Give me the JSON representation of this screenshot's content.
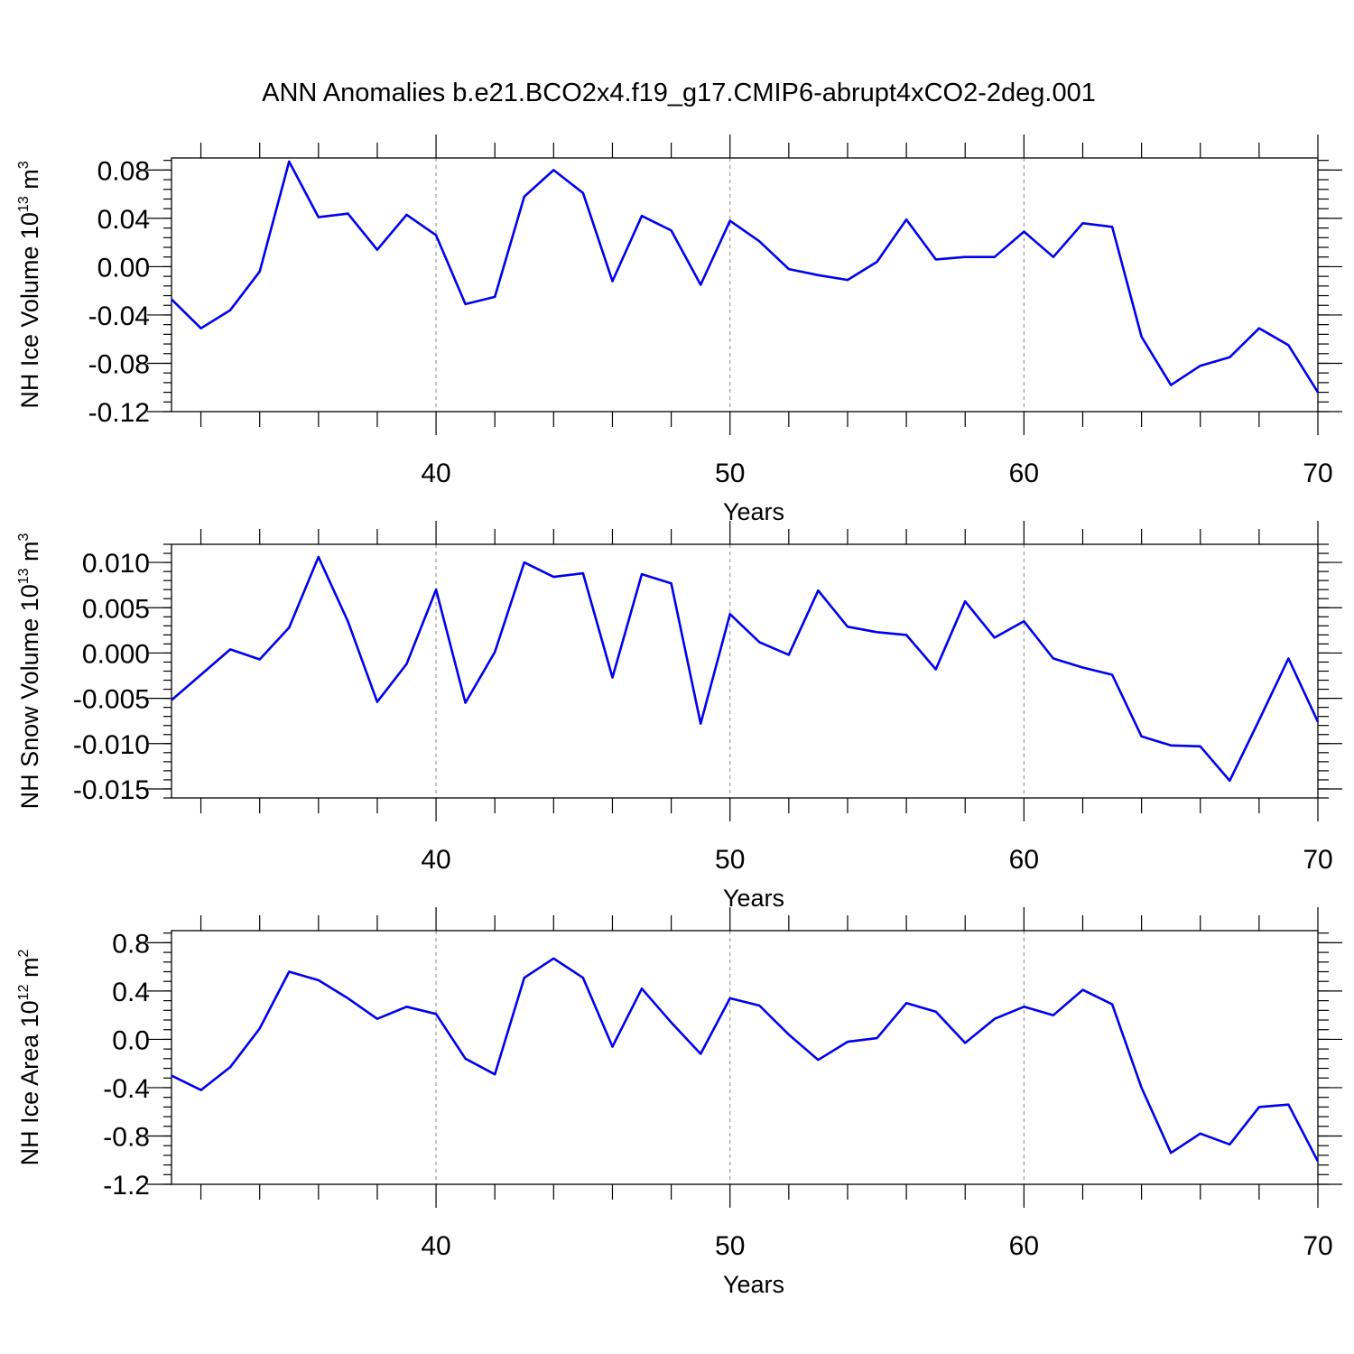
{
  "title": "ANN Anomalies b.e21.BCO2x4.f19_g17.CMIP6-abrupt4xCO2-2deg.001",
  "colors": {
    "line": "#0000ee",
    "grid": "#888888",
    "axis": "#000000"
  },
  "chart_data": [
    {
      "type": "line",
      "ylabel": {
        "text": "NH Ice Volume 10",
        "sup1": "13",
        "mid": " m",
        "sup2": "3"
      },
      "xlabel": "Years",
      "xlim": [
        31,
        70
      ],
      "ylim": [
        -0.12,
        0.09
      ],
      "yticks": [
        0.08,
        0.04,
        0.0,
        -0.04,
        -0.08,
        -0.12
      ],
      "ytick_labels": [
        "0.08",
        "0.04",
        "0.00",
        "-0.04",
        "-0.08",
        "-0.12"
      ],
      "yminor_step": 0.008,
      "xticks": [
        40,
        50,
        60,
        70
      ],
      "xtick_labels": [
        "40",
        "50",
        "60",
        "70"
      ],
      "xgrid": [
        40,
        50,
        60
      ],
      "x": [
        31,
        32,
        33,
        34,
        35,
        36,
        37,
        38,
        39,
        40,
        41,
        42,
        43,
        44,
        45,
        46,
        47,
        48,
        49,
        50,
        51,
        52,
        53,
        54,
        55,
        56,
        57,
        58,
        59,
        60,
        61,
        62,
        63,
        64,
        65,
        66,
        67,
        68,
        69,
        70
      ],
      "values": [
        -0.027,
        -0.051,
        -0.036,
        -0.004,
        0.087,
        0.041,
        0.044,
        0.014,
        0.043,
        0.026,
        -0.031,
        -0.025,
        0.058,
        0.08,
        0.061,
        -0.012,
        0.042,
        0.03,
        -0.015,
        0.038,
        0.021,
        -0.002,
        -0.007,
        -0.011,
        0.004,
        0.039,
        0.006,
        0.008,
        0.008,
        0.029,
        0.008,
        0.036,
        0.033,
        -0.058,
        -0.098,
        -0.082,
        -0.075,
        -0.051,
        -0.065,
        -0.104
      ]
    },
    {
      "type": "line",
      "ylabel": {
        "text": "NH Snow Volume 10",
        "sup1": "13",
        "mid": " m",
        "sup2": "3"
      },
      "xlabel": "Years",
      "xlim": [
        31,
        70
      ],
      "ylim": [
        -0.016,
        0.012
      ],
      "yticks": [
        0.01,
        0.005,
        0.0,
        -0.005,
        -0.01,
        -0.015
      ],
      "ytick_labels": [
        "0.010",
        "0.005",
        "0.000",
        "-0.005",
        "-0.010",
        "-0.015"
      ],
      "yminor_step": 0.001,
      "xticks": [
        40,
        50,
        60,
        70
      ],
      "xtick_labels": [
        "40",
        "50",
        "60",
        "70"
      ],
      "xgrid": [
        40,
        50,
        60
      ],
      "x": [
        31,
        32,
        33,
        34,
        35,
        36,
        37,
        38,
        39,
        40,
        41,
        42,
        43,
        44,
        45,
        46,
        47,
        48,
        49,
        50,
        51,
        52,
        53,
        54,
        55,
        56,
        57,
        58,
        59,
        60,
        61,
        62,
        63,
        64,
        65,
        66,
        67,
        68,
        69,
        70
      ],
      "values": [
        -0.0052,
        -0.0024,
        0.0004,
        -0.0007,
        0.0028,
        0.0106,
        0.0035,
        -0.0054,
        -0.0012,
        0.007,
        -0.0055,
        0.0001,
        0.01,
        0.0084,
        0.0088,
        -0.0027,
        0.0087,
        0.0077,
        -0.0078,
        0.0043,
        0.0012,
        -0.0002,
        0.0069,
        0.0029,
        0.0023,
        0.002,
        -0.0018,
        0.0057,
        0.0017,
        0.0035,
        -0.0006,
        -0.0016,
        -0.0024,
        -0.0092,
        -0.0102,
        -0.0103,
        -0.0141,
        -0.0074,
        -0.0006,
        -0.0076
      ]
    },
    {
      "type": "line",
      "ylabel": {
        "text": "NH Ice Area 10",
        "sup1": "12",
        "mid": " m",
        "sup2": "2"
      },
      "xlabel": "Years",
      "xlim": [
        31,
        70
      ],
      "ylim": [
        -1.2,
        0.9
      ],
      "yticks": [
        0.8,
        0.4,
        0.0,
        -0.4,
        -0.8,
        -1.2
      ],
      "ytick_labels": [
        "0.8",
        "0.4",
        "0.0",
        "-0.4",
        "-0.8",
        "-1.2"
      ],
      "yminor_step": 0.08,
      "xticks": [
        40,
        50,
        60,
        70
      ],
      "xtick_labels": [
        "40",
        "50",
        "60",
        "70"
      ],
      "xgrid": [
        40,
        50,
        60
      ],
      "x": [
        31,
        32,
        33,
        34,
        35,
        36,
        37,
        38,
        39,
        40,
        41,
        42,
        43,
        44,
        45,
        46,
        47,
        48,
        49,
        50,
        51,
        52,
        53,
        54,
        55,
        56,
        57,
        58,
        59,
        60,
        61,
        62,
        63,
        64,
        65,
        66,
        67,
        68,
        69,
        70
      ],
      "values": [
        -0.3,
        -0.42,
        -0.23,
        0.09,
        0.56,
        0.49,
        0.34,
        0.17,
        0.27,
        0.21,
        -0.16,
        -0.29,
        0.51,
        0.67,
        0.51,
        -0.06,
        0.42,
        0.14,
        -0.12,
        0.34,
        0.28,
        0.04,
        -0.17,
        -0.02,
        0.01,
        0.3,
        0.23,
        -0.03,
        0.17,
        0.27,
        0.2,
        0.41,
        0.29,
        -0.4,
        -0.94,
        -0.78,
        -0.87,
        -0.56,
        -0.54,
        -1.01
      ]
    }
  ]
}
